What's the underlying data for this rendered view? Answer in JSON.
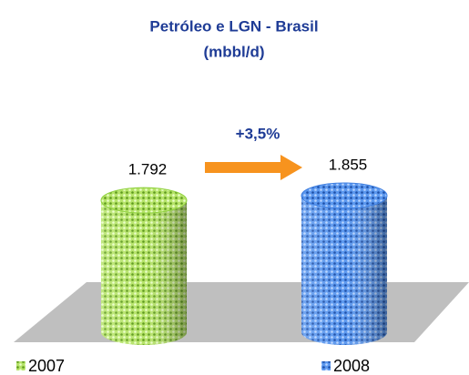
{
  "chart_data": {
    "type": "bar",
    "title": "Petróleo e LGN - Brasil",
    "subtitle": "(mbbl/d)",
    "annotation": "+3,5%",
    "series": [
      {
        "name": "2007",
        "color": "#8fd13f",
        "values": [
          1792
        ],
        "value_labels": [
          "1.792"
        ]
      },
      {
        "name": "2008",
        "color": "#3f7fe0",
        "values": [
          1855
        ],
        "value_labels": [
          "1.855"
        ]
      }
    ]
  }
}
